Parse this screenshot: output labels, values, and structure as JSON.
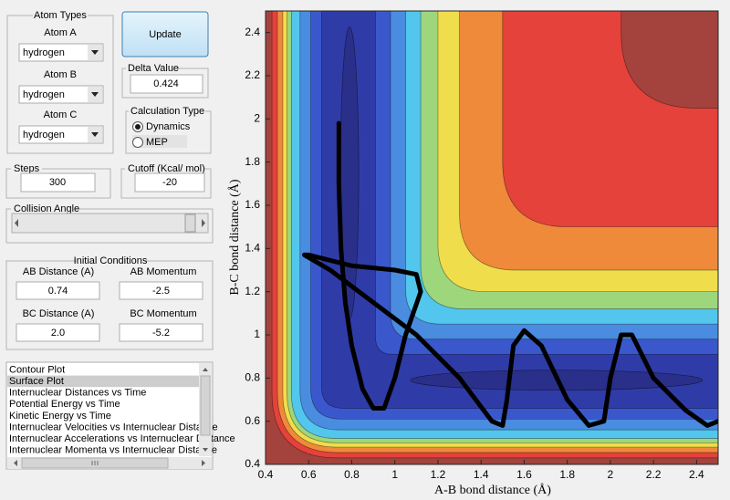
{
  "buttons": {
    "update": "Update"
  },
  "atom_types": {
    "title": "Atom Types",
    "fields": [
      {
        "label": "Atom A",
        "value": "hydrogen"
      },
      {
        "label": "Atom B",
        "value": "hydrogen"
      },
      {
        "label": "Atom C",
        "value": "hydrogen"
      }
    ]
  },
  "delta": {
    "label": "Delta Value",
    "value": "0.424"
  },
  "calc_type": {
    "title": "Calculation Type",
    "options": [
      "Dynamics",
      "MEP"
    ],
    "selected": 0
  },
  "steps": {
    "label": "Steps",
    "value": "300"
  },
  "cutoff": {
    "label": "Cutoff (Kcal/ mol)",
    "value": "-20"
  },
  "collision_angle": {
    "label": "Collision Angle"
  },
  "initial": {
    "title": "Initial Conditions",
    "fields": [
      {
        "label": "AB Distance (A)",
        "value": "0.74"
      },
      {
        "label": "AB Momentum",
        "value": "-2.5"
      },
      {
        "label": "BC Distance (A)",
        "value": "2.0"
      },
      {
        "label": "BC Momentum",
        "value": "-5.2"
      }
    ]
  },
  "plot_list": {
    "items": [
      "Contour Plot",
      "Surface Plot",
      "Internuclear Distances vs Time",
      "Potential Energy vs Time",
      "Kinetic Energy vs Time",
      "Internuclear Velocities vs Internuclear Distance",
      "Internuclear Accelerations vs Internuclear Distance",
      "Internuclear Momenta vs Internuclear Distance"
    ],
    "selected": 1
  },
  "chart_data": {
    "type": "line",
    "x_label": "A-B bond distance (Å)",
    "y_label": "B-C bond distance (Å)",
    "xlim": [
      0.4,
      2.5
    ],
    "ylim": [
      0.4,
      2.5
    ],
    "xticks": [
      0.4,
      0.6,
      0.8,
      1,
      1.2,
      1.4,
      1.6,
      1.8,
      2,
      2.2,
      2.4
    ],
    "yticks": [
      0.4,
      0.6,
      0.8,
      1,
      1.2,
      1.4,
      1.6,
      1.8,
      2,
      2.2,
      2.4
    ],
    "x": [
      0.74,
      0.74,
      0.75,
      0.77,
      0.8,
      0.85,
      0.9,
      0.95,
      1.0,
      1.05,
      1.12,
      1.1,
      1.0,
      0.8,
      0.6,
      0.58,
      0.7,
      0.9,
      1.1,
      1.3,
      1.45,
      1.5,
      1.52,
      1.55,
      1.6,
      1.68,
      1.8,
      1.9,
      1.97,
      2.0,
      2.05,
      2.1,
      2.2,
      2.35,
      2.45,
      2.5
    ],
    "series": [
      {
        "color": "#000000",
        "values": [
          1.98,
          1.7,
          1.4,
          1.15,
          0.95,
          0.75,
          0.66,
          0.66,
          0.8,
          1.0,
          1.2,
          1.28,
          1.3,
          1.32,
          1.37,
          1.37,
          1.3,
          1.15,
          1.0,
          0.8,
          0.6,
          0.58,
          0.7,
          0.95,
          1.02,
          0.95,
          0.7,
          0.58,
          0.6,
          0.8,
          1.0,
          1.0,
          0.8,
          0.65,
          0.58,
          0.6
        ]
      }
    ]
  }
}
